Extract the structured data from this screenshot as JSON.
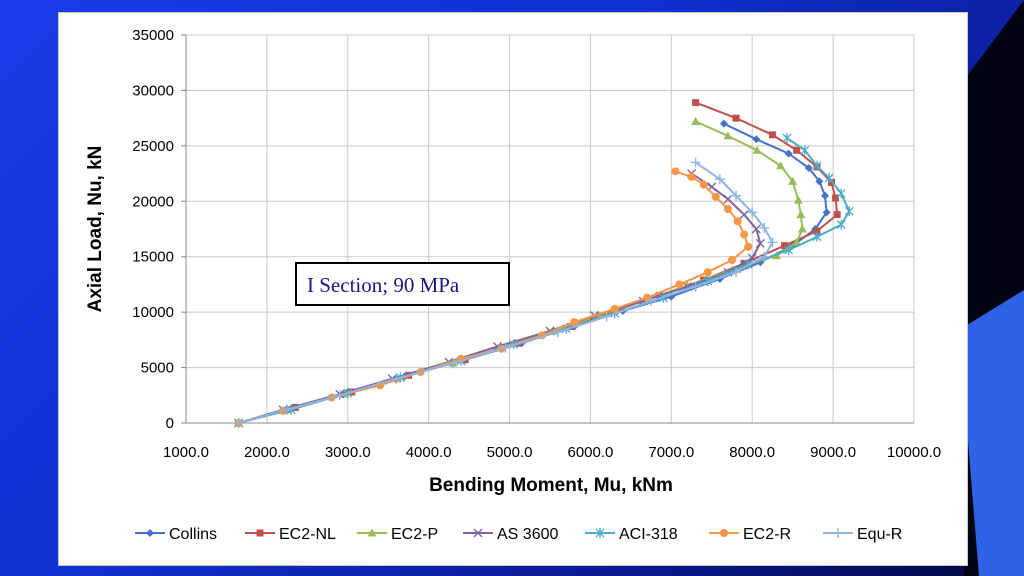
{
  "chart_data": {
    "type": "line",
    "xlabel": "Bending Moment, Mu, kNm",
    "ylabel": "Axial Load, Nu, kN",
    "xlim": [
      1000,
      10000
    ],
    "ylim": [
      0,
      35000
    ],
    "x_ticks": [
      "1000.0",
      "2000.0",
      "3000.0",
      "4000.0",
      "5000.0",
      "6000.0",
      "7000.0",
      "8000.0",
      "9000.0",
      "10000.0"
    ],
    "y_ticks": [
      "0",
      "5000",
      "10000",
      "15000",
      "20000",
      "25000",
      "30000",
      "35000"
    ],
    "grid": true,
    "legend_position": "bottom",
    "annotation": "I Section; 90 MPa",
    "series": [
      {
        "name": "Collins",
        "color": "#4472c4",
        "marker": "diamond",
        "points": [
          [
            1650,
            0
          ],
          [
            2300,
            1300
          ],
          [
            3000,
            2800
          ],
          [
            3700,
            4200
          ],
          [
            4450,
            5700
          ],
          [
            5150,
            7200
          ],
          [
            5800,
            8700
          ],
          [
            6400,
            10100
          ],
          [
            7000,
            11400
          ],
          [
            7600,
            13000
          ],
          [
            8100,
            14500
          ],
          [
            8500,
            16000
          ],
          [
            8780,
            17500
          ],
          [
            8920,
            19000
          ],
          [
            8900,
            20500
          ],
          [
            8830,
            21800
          ],
          [
            8700,
            23000
          ],
          [
            8450,
            24300
          ],
          [
            8050,
            25600
          ],
          [
            7650,
            27000
          ]
        ]
      },
      {
        "name": "EC2-NL",
        "color": "#c0504d",
        "marker": "square",
        "points": [
          [
            1650,
            0
          ],
          [
            2350,
            1400
          ],
          [
            3050,
            2800
          ],
          [
            3750,
            4300
          ],
          [
            4450,
            5700
          ],
          [
            5100,
            7200
          ],
          [
            5750,
            8700
          ],
          [
            6300,
            10100
          ],
          [
            6850,
            11500
          ],
          [
            7400,
            12900
          ],
          [
            7900,
            14400
          ],
          [
            8400,
            16000
          ],
          [
            8800,
            17300
          ],
          [
            9050,
            18800
          ],
          [
            9030,
            20300
          ],
          [
            8980,
            21700
          ],
          [
            8800,
            23100
          ],
          [
            8550,
            24600
          ],
          [
            8250,
            26000
          ],
          [
            7800,
            27500
          ],
          [
            7300,
            28900
          ]
        ]
      },
      {
        "name": "EC2-P",
        "color": "#9bbb59",
        "marker": "triangle",
        "points": [
          [
            1650,
            0
          ],
          [
            2250,
            1200
          ],
          [
            2950,
            2600
          ],
          [
            3600,
            4000
          ],
          [
            4300,
            5400
          ],
          [
            4900,
            6800
          ],
          [
            5550,
            8300
          ],
          [
            6100,
            9700
          ],
          [
            6700,
            11100
          ],
          [
            7200,
            12400
          ],
          [
            7750,
            13800
          ],
          [
            8300,
            15100
          ],
          [
            8550,
            16300
          ],
          [
            8620,
            17500
          ],
          [
            8600,
            18800
          ],
          [
            8570,
            20100
          ],
          [
            8500,
            21800
          ],
          [
            8350,
            23200
          ],
          [
            8060,
            24600
          ],
          [
            7700,
            25900
          ],
          [
            7300,
            27200
          ]
        ]
      },
      {
        "name": "AS 3600",
        "color": "#8064a2",
        "marker": "x",
        "points": [
          [
            1650,
            0
          ],
          [
            2200,
            1200
          ],
          [
            2900,
            2600
          ],
          [
            3550,
            4000
          ],
          [
            4250,
            5500
          ],
          [
            4850,
            6900
          ],
          [
            5500,
            8300
          ],
          [
            6050,
            9700
          ],
          [
            6650,
            11000
          ],
          [
            7200,
            12300
          ],
          [
            7700,
            13600
          ],
          [
            8000,
            14900
          ],
          [
            8100,
            16200
          ],
          [
            8050,
            17500
          ],
          [
            7900,
            18800
          ],
          [
            7700,
            20200
          ],
          [
            7500,
            21300
          ],
          [
            7250,
            22500
          ]
        ]
      },
      {
        "name": "ACI-318",
        "color": "#4bacc6",
        "marker": "asterisk",
        "points": [
          [
            1650,
            0
          ],
          [
            2300,
            1200
          ],
          [
            3000,
            2700
          ],
          [
            3650,
            4100
          ],
          [
            4400,
            5600
          ],
          [
            5050,
            7100
          ],
          [
            5700,
            8500
          ],
          [
            6300,
            9900
          ],
          [
            6900,
            11300
          ],
          [
            7450,
            12800
          ],
          [
            7950,
            14300
          ],
          [
            8450,
            15600
          ],
          [
            8800,
            16800
          ],
          [
            9100,
            17900
          ],
          [
            9200,
            19100
          ],
          [
            9100,
            20700
          ],
          [
            8950,
            22100
          ],
          [
            8800,
            23200
          ],
          [
            8650,
            24600
          ],
          [
            8430,
            25700
          ]
        ]
      },
      {
        "name": "EC2-R",
        "color": "#f79646",
        "marker": "circle",
        "points": [
          [
            1650,
            0
          ],
          [
            2200,
            1100
          ],
          [
            2800,
            2300
          ],
          [
            3400,
            3400
          ],
          [
            3900,
            4600
          ],
          [
            4400,
            5800
          ],
          [
            4900,
            6700
          ],
          [
            5400,
            7900
          ],
          [
            5800,
            9100
          ],
          [
            6300,
            10300
          ],
          [
            6700,
            11300
          ],
          [
            7100,
            12500
          ],
          [
            7450,
            13600
          ],
          [
            7750,
            14700
          ],
          [
            7950,
            15900
          ],
          [
            7900,
            17000
          ],
          [
            7820,
            18200
          ],
          [
            7700,
            19300
          ],
          [
            7550,
            20400
          ],
          [
            7400,
            21500
          ],
          [
            7250,
            22200
          ],
          [
            7050,
            22700
          ]
        ]
      },
      {
        "name": "Equ-R",
        "color": "#8eb4e3",
        "marker": "plus",
        "points": [
          [
            1650,
            0
          ],
          [
            2250,
            1200
          ],
          [
            2900,
            2500
          ],
          [
            3600,
            4000
          ],
          [
            4300,
            5400
          ],
          [
            4950,
            6800
          ],
          [
            5600,
            8200
          ],
          [
            6200,
            9600
          ],
          [
            6750,
            11000
          ],
          [
            7300,
            12300
          ],
          [
            7800,
            13600
          ],
          [
            8150,
            15000
          ],
          [
            8250,
            16300
          ],
          [
            8150,
            17600
          ],
          [
            8000,
            19000
          ],
          [
            7800,
            20500
          ],
          [
            7600,
            22000
          ],
          [
            7300,
            23500
          ]
        ]
      }
    ]
  }
}
